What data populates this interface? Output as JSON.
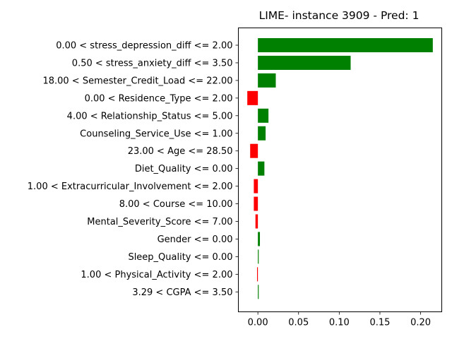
{
  "chart_data": {
    "type": "bar",
    "orientation": "horizontal",
    "title": "LIME- instance 3909 - Pred: 1",
    "xlabel": "",
    "ylabel": "",
    "xlim": [
      -0.024,
      0.226
    ],
    "xticks": [
      0.0,
      0.05,
      0.1,
      0.15,
      0.2
    ],
    "xtick_labels": [
      "0.00",
      "0.05",
      "0.10",
      "0.15",
      "0.20"
    ],
    "grid": false,
    "legend": "none",
    "colors": {
      "positive": "#008000",
      "negative": "#ff0000"
    },
    "categories": [
      "0.00 < stress_depression_diff <= 2.00",
      "0.50 < stress_anxiety_diff <= 3.50",
      "18.00 < Semester_Credit_Load <= 22.00",
      "0.00 < Residence_Type <= 2.00",
      "4.00 < Relationship_Status <= 5.00",
      "Counseling_Service_Use <= 1.00",
      "23.00 < Age <= 28.50",
      "Diet_Quality <= 0.00",
      "1.00 < Extracurricular_Involvement <= 2.00",
      "8.00 < Course <= 10.00",
      "Mental_Severity_Score <= 7.00",
      "Gender <= 0.00",
      "Sleep_Quality <= 0.00",
      "1.00 < Physical_Activity <= 2.00",
      "3.29 < CGPA <= 3.50"
    ],
    "values": [
      0.215,
      0.114,
      0.022,
      -0.013,
      0.013,
      0.0095,
      -0.0095,
      0.008,
      -0.005,
      -0.005,
      -0.003,
      0.0025,
      0.001,
      -0.001,
      0.001
    ]
  }
}
